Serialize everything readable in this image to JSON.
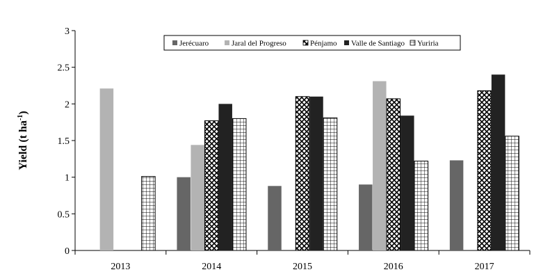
{
  "chart_data": {
    "type": "bar",
    "title": "",
    "xlabel": "",
    "ylabel": "Yield (t ha",
    "ylabel_superscript": "-1",
    "ylabel_suffix": ")",
    "ylim": [
      0,
      3
    ],
    "yticks": [
      "0",
      "0.5",
      "1",
      "1.5",
      "2",
      "2.5",
      "3"
    ],
    "categories": [
      "2013",
      "2014",
      "2015",
      "2016",
      "2017"
    ],
    "legend_position": "top-right",
    "grid": false,
    "series": [
      {
        "name": "Jerécuaro",
        "values": [
          null,
          1.0,
          0.88,
          0.9,
          1.23
        ],
        "color": "#666666",
        "pattern": "solid-dark"
      },
      {
        "name": "Jaral del Progreso",
        "values": [
          2.21,
          1.44,
          null,
          2.31,
          null
        ],
        "color": "#b3b3b3",
        "pattern": "solid-light"
      },
      {
        "name": "Pénjamo",
        "values": [
          null,
          1.77,
          2.1,
          2.07,
          2.18
        ],
        "color": "#000000",
        "pattern": "lattice"
      },
      {
        "name": "Valle de Santiago",
        "values": [
          null,
          2.0,
          2.1,
          1.84,
          2.4
        ],
        "color": "#222222",
        "pattern": "solid-black"
      },
      {
        "name": "Yuriria",
        "values": [
          1.01,
          1.8,
          1.81,
          1.22,
          1.56
        ],
        "color": "#000000",
        "pattern": "grid"
      }
    ]
  }
}
